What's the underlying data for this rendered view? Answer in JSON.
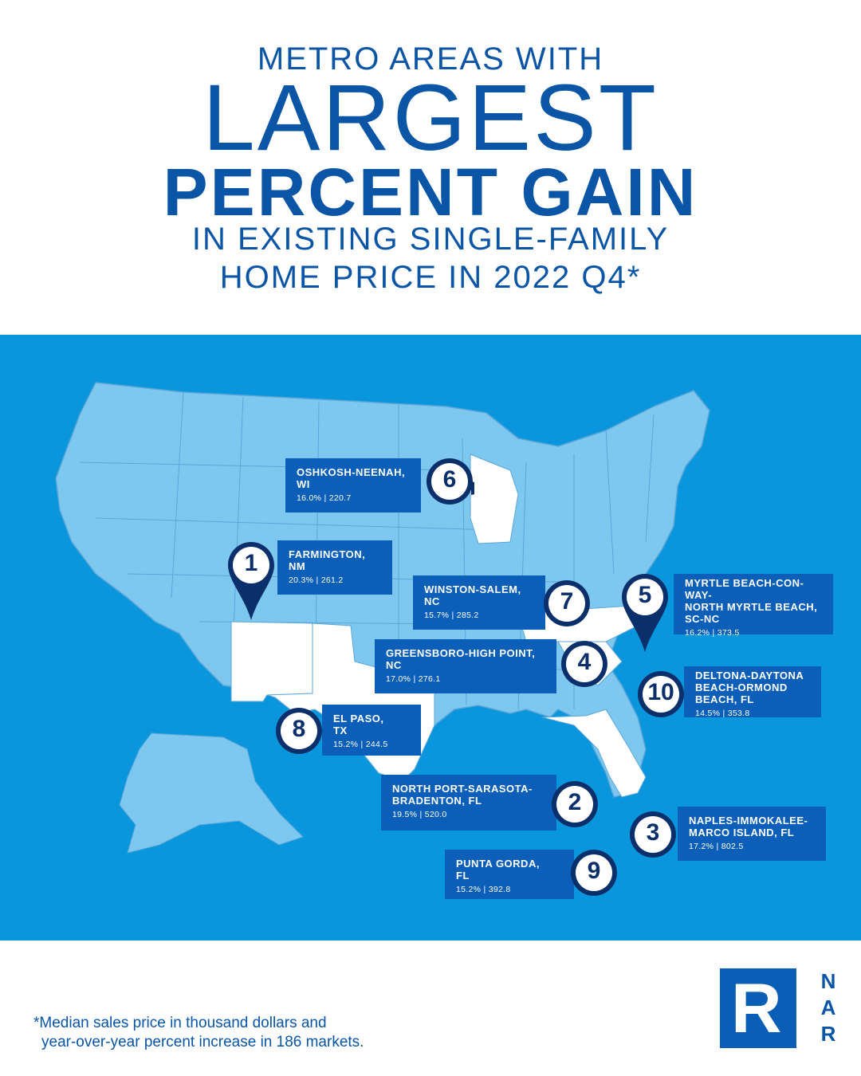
{
  "title": {
    "line1": "METRO AREAS WITH",
    "line2": "LARGEST",
    "line3": "PERCENT GAIN",
    "line4": "IN EXISTING SINGLE-FAMILY",
    "line5": "HOME PRICE IN 2022 Q4*"
  },
  "colors": {
    "panel": "#0a96dc",
    "land": "#7ec8f0",
    "highlight": "#ffffff",
    "card": "#0c5fb8",
    "pin": "#0a2f6b",
    "title": "#0a55a6"
  },
  "markets": [
    {
      "rank": "1",
      "name": "FARMINGTON,\nNM",
      "stat": "20.3% | 261.2"
    },
    {
      "rank": "2",
      "name": "NORTH PORT-SARASOTA-\nBRADENTON, FL",
      "stat": "19.5% | 520.0"
    },
    {
      "rank": "3",
      "name": "NAPLES-IMMOKALEE-\nMARCO ISLAND, FL",
      "stat": "17.2% | 802.5"
    },
    {
      "rank": "4",
      "name": "GREENSBORO-HIGH POINT,\nNC",
      "stat": "17.0% | 276.1"
    },
    {
      "rank": "5",
      "name": "MYRTLE BEACH-CON-\nWAY-\nNORTH MYRTLE BEACH,\nSC-NC",
      "stat": "16.2% | 373.5"
    },
    {
      "rank": "6",
      "name": "OSHKOSH-NEENAH,\nWI",
      "stat": "16.0% | 220.7"
    },
    {
      "rank": "7",
      "name": "WINSTON-SALEM,\nNC",
      "stat": "15.7% | 285.2"
    },
    {
      "rank": "8",
      "name": "EL PASO,\nTX",
      "stat": "15.2% | 244.5"
    },
    {
      "rank": "9",
      "name": "PUNTA GORDA,\nFL",
      "stat": "15.2% | 392.8"
    },
    {
      "rank": "10",
      "name": "DELTONA-DAYTONA\nBEACH-ORMOND\nBEACH, FL",
      "stat": "14.5% | 353.8"
    }
  ],
  "footnote": {
    "line1": "*Median sales price in thousand dollars and",
    "line2": "year-over-year percent increase in 186 markets."
  },
  "logo": {
    "mark": "R",
    "letters": [
      "N",
      "A",
      "R"
    ]
  }
}
